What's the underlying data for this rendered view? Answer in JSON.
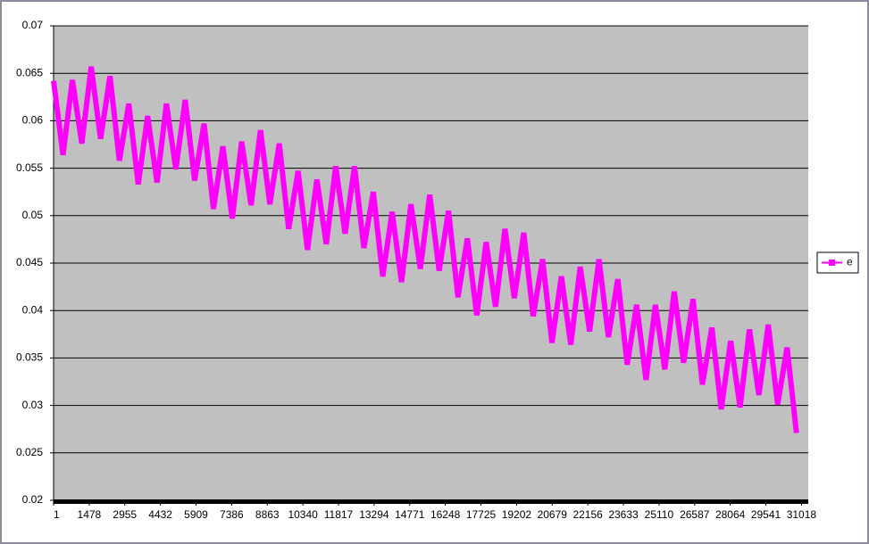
{
  "chart_data": {
    "type": "line",
    "x": [
      1,
      391,
      781,
      1171,
      1561,
      1951,
      2341,
      2731,
      3121,
      3511,
      3901,
      4291,
      4681,
      5071,
      5461,
      5851,
      6241,
      6631,
      7021,
      7411,
      7801,
      8191,
      8581,
      8971,
      9361,
      9751,
      10141,
      10531,
      10921,
      11311,
      11701,
      12091,
      12481,
      12871,
      13261,
      13651,
      14041,
      14431,
      14821,
      15211,
      15601,
      15991,
      16381,
      16771,
      17161,
      17551,
      17941,
      18331,
      18721,
      19111,
      19501,
      19891,
      20281,
      20671,
      21061,
      21451,
      21841,
      22231,
      22621,
      23011,
      23401,
      23791,
      24181,
      24571,
      24961,
      25351,
      25741,
      26131,
      26521,
      26911,
      27301,
      27691,
      28081,
      28471,
      28861,
      29251,
      29641,
      30031,
      30421,
      30811
    ],
    "series": [
      {
        "name": "e",
        "color": "#ff00ff",
        "values": [
          0.0642,
          0.0564,
          0.0643,
          0.0576,
          0.0657,
          0.0581,
          0.0647,
          0.0558,
          0.0618,
          0.0533,
          0.0605,
          0.0535,
          0.0618,
          0.0549,
          0.0622,
          0.0537,
          0.0597,
          0.0507,
          0.0573,
          0.0497,
          0.0578,
          0.0511,
          0.059,
          0.0512,
          0.0576,
          0.0486,
          0.0547,
          0.0464,
          0.0538,
          0.047,
          0.0552,
          0.0481,
          0.0552,
          0.0466,
          0.0525,
          0.0436,
          0.0504,
          0.043,
          0.0512,
          0.0444,
          0.0522,
          0.0442,
          0.0505,
          0.0414,
          0.0476,
          0.0395,
          0.0472,
          0.0404,
          0.0486,
          0.0413,
          0.0482,
          0.0394,
          0.0454,
          0.0366,
          0.0436,
          0.0364,
          0.0446,
          0.0378,
          0.0454,
          0.0372,
          0.0433,
          0.0343,
          0.0406,
          0.0327,
          0.0406,
          0.0338,
          0.042,
          0.0345,
          0.0412,
          0.0322,
          0.0382,
          0.0296,
          0.0368,
          0.0298,
          0.038,
          0.0311,
          0.0385,
          0.0301,
          0.0361,
          0.0271
        ]
      }
    ],
    "xlim": [
      1,
      31300
    ],
    "xticks": [
      1,
      1478,
      2955,
      4432,
      5909,
      7386,
      8863,
      10340,
      11817,
      13294,
      14771,
      16248,
      17725,
      19202,
      20679,
      22156,
      23633,
      25110,
      26587,
      28064,
      29541,
      31018
    ],
    "ylim": [
      0.02,
      0.07
    ],
    "yticks": [
      0.02,
      0.025,
      0.03,
      0.035,
      0.04,
      0.045,
      0.05,
      0.055,
      0.06,
      0.065,
      0.07
    ],
    "grid": true,
    "legend": "right"
  }
}
